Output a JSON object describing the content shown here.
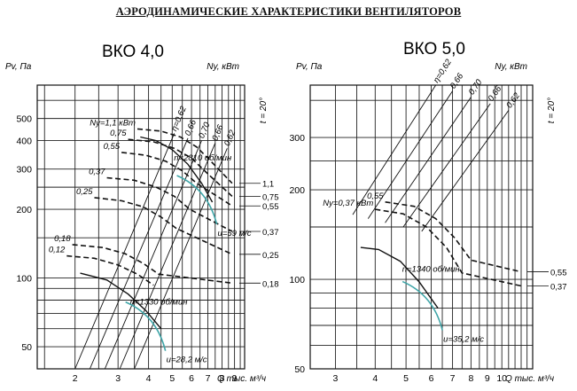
{
  "page_title": "АЭРОДИНАМИЧЕСКИЕ ХАРАКТЕРИСТИКИ ВЕНТИЛЯТОРОВ",
  "chart_data": [
    {
      "type": "line",
      "title": "ВКО 4,0",
      "ylabel": "Pv, Па",
      "y2label": "Ny, кВт",
      "xlabel": "Q тыс. м³/ч",
      "temperature_label": "t = 20°",
      "xscale": "log",
      "yscale": "log",
      "xlim": [
        1.4,
        9.9
      ],
      "ylim": [
        40,
        700
      ],
      "x_ticks": [
        "2",
        "3",
        "4",
        "5",
        "6",
        "7",
        "8",
        "9"
      ],
      "x_tick_values": [
        2,
        3,
        4,
        5,
        6,
        7,
        8,
        9
      ],
      "y_ticks": [
        "50",
        "100",
        "200",
        "300",
        "400",
        "500"
      ],
      "y_tick_values": [
        50,
        100,
        200,
        300,
        400,
        500
      ],
      "power_axis_ticks": [
        {
          "label": "1,1",
          "pv": 260
        },
        {
          "label": "0,75",
          "pv": 228
        },
        {
          "label": "0,55",
          "pv": 207
        },
        {
          "label": "0,37",
          "pv": 160
        },
        {
          "label": "0,25",
          "pv": 127
        },
        {
          "label": "0,18",
          "pv": 95
        }
      ],
      "series": [
        {
          "name": "n=2810 об/мин",
          "x": [
            3.7,
            4.3,
            5.0,
            5.8,
            6.6,
            7.3
          ],
          "y": [
            415,
            400,
            365,
            315,
            260,
            215
          ]
        },
        {
          "name": "n=1330 об/мин",
          "x": [
            2.1,
            2.7,
            3.3,
            3.9,
            4.5
          ],
          "y": [
            105,
            98,
            85,
            72,
            60
          ]
        }
      ],
      "efficiency_lines": [
        {
          "label": "η=0,62",
          "x": [
            2.0,
            5.1
          ],
          "y": [
            40,
            430
          ]
        },
        {
          "label": "0,66",
          "x": [
            2.3,
            5.8
          ],
          "y": [
            40,
            410
          ]
        },
        {
          "label": "0,70",
          "x": [
            2.65,
            6.6
          ],
          "y": [
            40,
            400
          ]
        },
        {
          "label": "0,66",
          "x": [
            3.05,
            7.5
          ],
          "y": [
            40,
            390
          ]
        },
        {
          "label": "0,62",
          "x": [
            3.5,
            8.4
          ],
          "y": [
            40,
            370
          ]
        }
      ],
      "power_curves": [
        {
          "label": "Ny=1,1 кВт",
          "x": [
            3.6,
            4.5,
            5.4,
            6.3,
            7.2,
            8.8
          ],
          "y": [
            450,
            440,
            415,
            375,
            325,
            260
          ]
        },
        {
          "label": "0,75",
          "x": [
            3.3,
            4.2,
            5.1,
            6.0,
            6.9,
            8.8
          ],
          "y": [
            405,
            395,
            370,
            335,
            290,
            228
          ]
        },
        {
          "label": "0,55",
          "x": [
            3.1,
            3.9,
            4.7,
            5.5,
            6.3,
            8.8
          ],
          "y": [
            355,
            345,
            325,
            295,
            260,
            207
          ]
        },
        {
          "label": "0,37",
          "x": [
            2.7,
            3.5,
            4.3,
            5.1,
            5.9,
            8.8
          ],
          "y": [
            275,
            268,
            250,
            228,
            200,
            160
          ]
        },
        {
          "label": "0,25",
          "x": [
            2.4,
            3.1,
            3.8,
            4.5,
            5.2,
            8.8
          ],
          "y": [
            225,
            218,
            205,
            185,
            165,
            127
          ]
        },
        {
          "label": "0,18",
          "x": [
            1.95,
            2.6,
            3.2,
            3.8,
            4.4,
            8.8
          ],
          "y": [
            140,
            136,
            128,
            116,
            104,
            95
          ]
        },
        {
          "label": "0,12",
          "x": [
            1.85,
            2.4,
            3.0,
            3.6,
            4.2
          ],
          "y": [
            125,
            122,
            114,
            104,
            93
          ]
        }
      ],
      "annotations": [
        "n=2810 об/мин",
        "n=1330 об/мин",
        "u=59 м/с",
        "u=28,2 м/с"
      ]
    },
    {
      "type": "line",
      "title": "ВКО 5,0",
      "ylabel": "Pv, Па",
      "y2label": "Ny, кВт",
      "xlabel": "Q тыс. м³/ч",
      "temperature_label": "t = 20°",
      "xscale": "log",
      "yscale": "log",
      "xlim": [
        2.5,
        12.5
      ],
      "ylim": [
        50,
        450
      ],
      "x_ticks": [
        "3",
        "4",
        "5",
        "6",
        "7",
        "8",
        "9",
        "10"
      ],
      "x_tick_values": [
        3,
        4,
        5,
        6,
        7,
        8,
        9,
        10
      ],
      "y_ticks": [
        "50",
        "100",
        "200",
        "300"
      ],
      "y_tick_values": [
        50,
        100,
        200,
        300
      ],
      "power_axis_ticks": [
        {
          "label": "0,55",
          "pv": 106
        },
        {
          "label": "0,37",
          "pv": 95
        }
      ],
      "series": [
        {
          "name": "n=1340 об/мин",
          "x": [
            3.6,
            4.1,
            4.8,
            5.5,
            6.3
          ],
          "y": [
            128,
            126,
            115,
            98,
            80
          ]
        }
      ],
      "efficiency_lines": [
        {
          "label": "η=0,62",
          "x": [
            3.4,
            6.2
          ],
          "y": [
            165,
            450
          ]
        },
        {
          "label": "0,66",
          "x": [
            3.8,
            7.0
          ],
          "y": [
            160,
            430
          ]
        },
        {
          "label": "0,70",
          "x": [
            4.3,
            8.0
          ],
          "y": [
            155,
            410
          ]
        },
        {
          "label": "0,66",
          "x": [
            4.9,
            9.2
          ],
          "y": [
            150,
            390
          ]
        },
        {
          "label": "0,62",
          "x": [
            5.6,
            10.5
          ],
          "y": [
            145,
            370
          ]
        }
      ],
      "power_curves": [
        {
          "label": "0,55",
          "x": [
            4.3,
            5.3,
            6.2,
            7.1,
            8.0,
            11.5
          ],
          "y": [
            182,
            176,
            160,
            138,
            116,
            106
          ]
        },
        {
          "label": "Ny=0,37 кВт",
          "x": [
            4.0,
            4.9,
            5.8,
            6.7,
            7.5,
            11.5
          ],
          "y": [
            172,
            166,
            150,
            128,
            105,
            95
          ]
        }
      ],
      "annotations": [
        "n=1340 об/мин",
        "u=35,2 м/с"
      ]
    }
  ]
}
